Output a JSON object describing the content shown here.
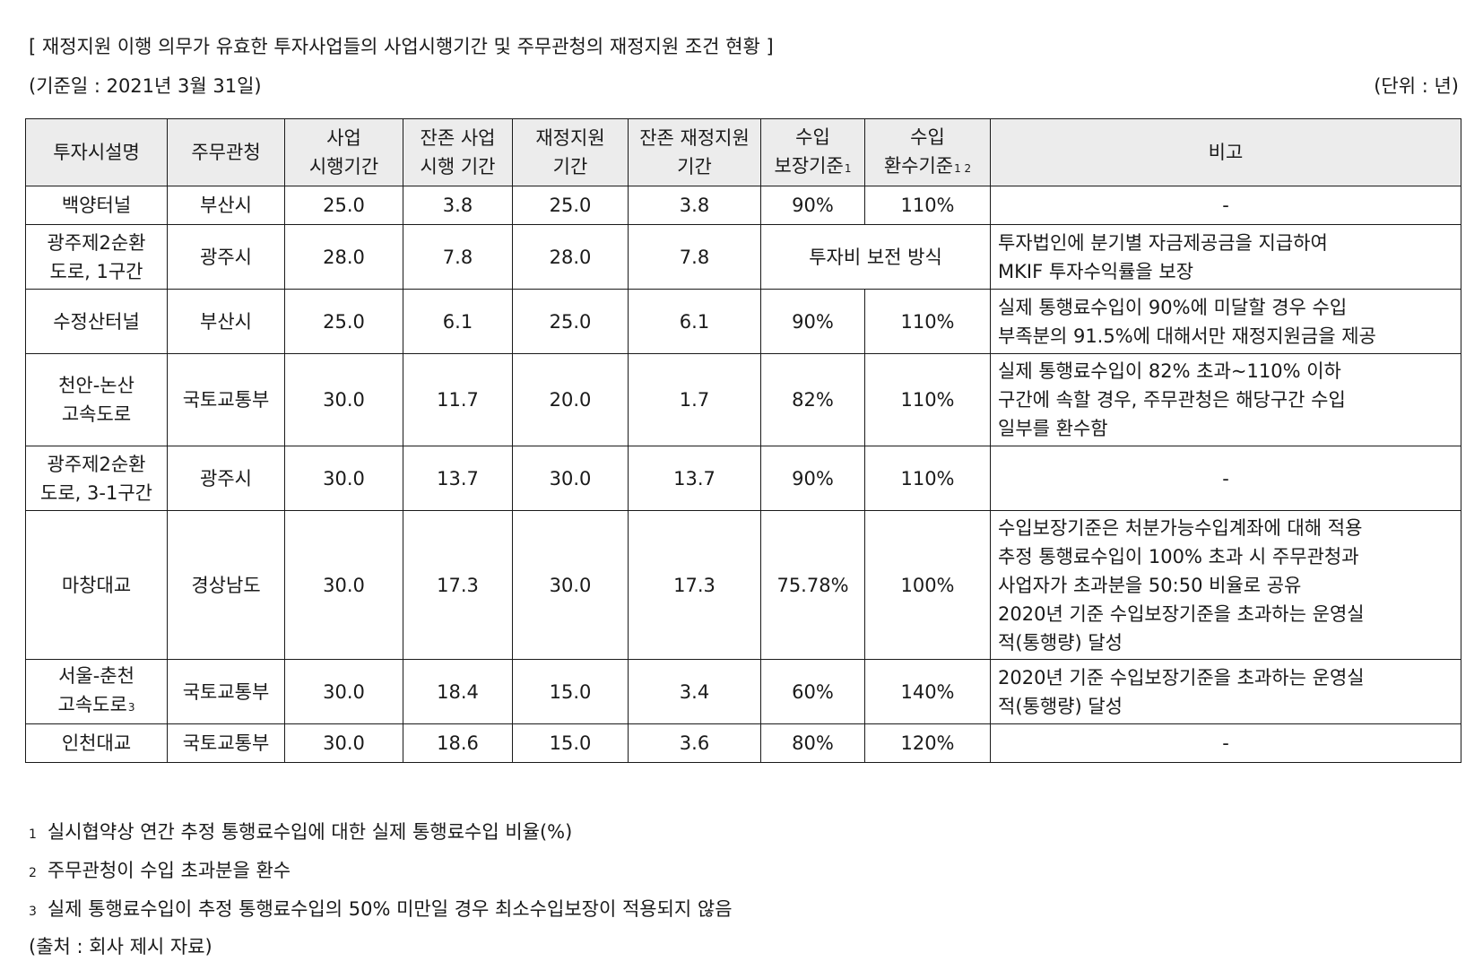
{
  "title": "[ 재정지원 이행 의무가 유효한 투자사업들의 사업시행기간 및 주무관청의 재정지원 조건 현황 ]",
  "basis_date": "(기준일 : 2021년 3월 31일)",
  "unit": "(단위 : 년)",
  "headers": {
    "facility": "투자시설명",
    "authority": "주무관청",
    "period_l1": "사업",
    "period_l2": "시행기간",
    "remaining_l1": "잔존 사업",
    "remaining_l2": "시행 기간",
    "support_l1": "재정지원",
    "support_l2": "기간",
    "remaining_support_l1": "잔존 재정지원",
    "remaining_support_l2": "기간",
    "guarantee_l1": "수입",
    "guarantee_l2": "보장기준",
    "guarantee_sup": "1",
    "redemption_l1": "수입",
    "redemption_l2": "환수기준",
    "redemption_sup": "1 2",
    "note": "비고"
  },
  "rows": [
    {
      "name": "백양터널",
      "authority": "부산시",
      "period": "25.0",
      "remaining": "3.8",
      "support": "25.0",
      "remaining_support": "3.8",
      "guarantee": "90%",
      "redemption": "110%",
      "note": "-"
    },
    {
      "name": "광주제2순환\n도로, 1구간",
      "authority": "광주시",
      "period": "28.0",
      "remaining": "7.8",
      "support": "28.0",
      "remaining_support": "7.8",
      "merged": "투자비 보전 방식",
      "note": "투자법인에 분기별 자금제공금을 지급하여\nMKIF 투자수익률을 보장"
    },
    {
      "name": "수정산터널",
      "authority": "부산시",
      "period": "25.0",
      "remaining": "6.1",
      "support": "25.0",
      "remaining_support": "6.1",
      "guarantee": "90%",
      "redemption": "110%",
      "note": "실제 통행료수입이 90%에 미달할 경우 수입\n부족분의 91.5%에 대해서만 재정지원금을 제공"
    },
    {
      "name": "천안-논산\n고속도로",
      "authority": "국토교통부",
      "period": "30.0",
      "remaining": "11.7",
      "support": "20.0",
      "remaining_support": "1.7",
      "guarantee": "82%",
      "redemption": "110%",
      "note": "실제 통행료수입이 82% 초과~110% 이하\n구간에 속할 경우, 주무관청은 해당구간 수입\n일부를 환수함"
    },
    {
      "name": "광주제2순환\n도로, 3-1구간",
      "authority": "광주시",
      "period": "30.0",
      "remaining": "13.7",
      "support": "30.0",
      "remaining_support": "13.7",
      "guarantee": "90%",
      "redemption": "110%",
      "note": "-"
    },
    {
      "name": "마창대교",
      "authority": "경상남도",
      "period": "30.0",
      "remaining": "17.3",
      "support": "30.0",
      "remaining_support": "17.3",
      "guarantee": "75.78%",
      "redemption": "100%",
      "note": "수입보장기준은 처분가능수입계좌에 대해 적용\n추정 통행료수입이 100% 초과 시 주무관청과\n사업자가 초과분을 50:50 비율로 공유\n2020년 기준 수입보장기준을 초과하는 운영실\n적(통행량) 달성"
    },
    {
      "name": "서울-춘천\n고속도로",
      "name_sup": "3",
      "authority": "국토교통부",
      "period": "30.0",
      "remaining": "18.4",
      "support": "15.0",
      "remaining_support": "3.4",
      "guarantee": "60%",
      "redemption": "140%",
      "note": "2020년 기준 수입보장기준을 초과하는 운영실\n적(통행량) 달성"
    },
    {
      "name": "인천대교",
      "authority": "국토교통부",
      "period": "30.0",
      "remaining": "18.6",
      "support": "15.0",
      "remaining_support": "3.6",
      "guarantee": "80%",
      "redemption": "120%",
      "note": "-"
    }
  ],
  "footnotes": [
    {
      "mark": "1",
      "text": "실시협약상 연간 추정 통행료수입에 대한 실제 통행료수입 비율(%)"
    },
    {
      "mark": "2",
      "text": "주무관청이 수입 초과분을 환수"
    },
    {
      "mark": "3",
      "text": "실제 통행료수입이 추정 통행료수입의 50% 미만일 경우 최소수입보장이 적용되지 않음"
    }
  ],
  "source": "(출처 : 회사 제시 자료)"
}
